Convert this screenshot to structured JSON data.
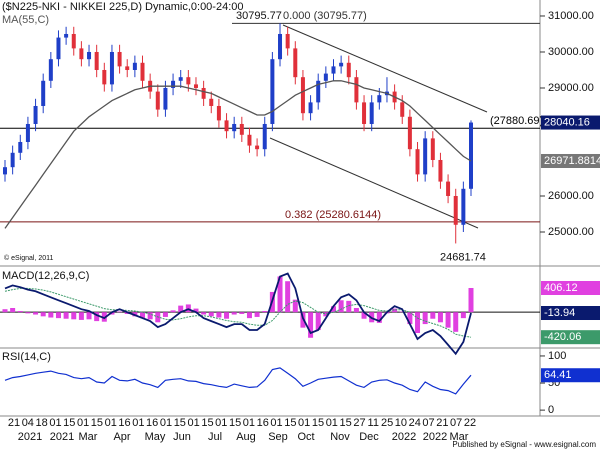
{
  "chart_data": {
    "type": "candlestick",
    "title": "($N225-NKI - NIKKEI 225,D) Dynamic,0:00-24:00",
    "copyright": "© eSignal, 2011",
    "footer": "Published by eSignal - www.esignal.com",
    "x_day_labels": [
      "21",
      "04",
      "18",
      "01",
      "15",
      "01",
      "15",
      "01",
      "16",
      "01",
      "16",
      "01",
      "15",
      "01",
      "15",
      "01",
      "15",
      "01",
      "16",
      "01",
      "15",
      "01",
      "15",
      "01",
      "15",
      "27",
      "11",
      "25",
      "10",
      "24",
      "07",
      "21",
      "07",
      "22"
    ],
    "x_month_labels": [
      "2021",
      "2021",
      "Mar",
      "Apr",
      "May",
      "Jun",
      "Jul",
      "Aug",
      "Sep",
      "Oct",
      "Nov",
      "Dec",
      "2022",
      "2022",
      "Mar"
    ],
    "up_color": "#1f3fc8",
    "down_color": "#e0303a",
    "candles": [
      [
        26600,
        27000,
        26400,
        26800
      ],
      [
        26800,
        27400,
        26600,
        27200
      ],
      [
        27200,
        27700,
        27000,
        27500
      ],
      [
        27500,
        28200,
        27300,
        28000
      ],
      [
        28000,
        28700,
        27800,
        28500
      ],
      [
        28500,
        29400,
        28300,
        29200
      ],
      [
        29200,
        30000,
        29000,
        29800
      ],
      [
        29800,
        30600,
        29600,
        30400
      ],
      [
        30400,
        30700,
        30200,
        30500
      ],
      [
        30500,
        30700,
        29900,
        30100
      ],
      [
        30100,
        30300,
        29600,
        29800
      ],
      [
        29800,
        30200,
        29600,
        30000
      ],
      [
        30000,
        30200,
        29300,
        29500
      ],
      [
        29500,
        29700,
        28900,
        29100
      ],
      [
        29100,
        30200,
        28900,
        30000
      ],
      [
        30000,
        30200,
        29400,
        29600
      ],
      [
        29600,
        29800,
        29300,
        29500
      ],
      [
        29500,
        29900,
        29300,
        29700
      ],
      [
        29700,
        29900,
        29000,
        29200
      ],
      [
        29200,
        29400,
        28700,
        28900
      ],
      [
        28900,
        29100,
        28200,
        28400
      ],
      [
        28400,
        29200,
        28200,
        29000
      ],
      [
        29000,
        29400,
        28800,
        29200
      ],
      [
        29200,
        29500,
        29000,
        29300
      ],
      [
        29300,
        29500,
        28900,
        29100
      ],
      [
        29100,
        29300,
        28800,
        29000
      ],
      [
        29000,
        29200,
        28500,
        28700
      ],
      [
        28700,
        28900,
        28300,
        28500
      ],
      [
        28500,
        28700,
        27900,
        28100
      ],
      [
        28100,
        28300,
        27600,
        27800
      ],
      [
        27800,
        28200,
        27600,
        28000
      ],
      [
        28000,
        28200,
        27500,
        27700
      ],
      [
        27700,
        27900,
        27200,
        27400
      ],
      [
        27400,
        27600,
        27100,
        27300
      ],
      [
        27300,
        28200,
        27100,
        28000
      ],
      [
        28000,
        30000,
        27800,
        29800
      ],
      [
        29800,
        30795.77,
        29600,
        30500
      ],
      [
        30500,
        30700,
        29900,
        30100
      ],
      [
        30100,
        30300,
        29100,
        29300
      ],
      [
        29300,
        29500,
        28100,
        28300
      ],
      [
        28300,
        28800,
        28100,
        28600
      ],
      [
        28600,
        29400,
        28400,
        29200
      ],
      [
        29200,
        29600,
        29000,
        29400
      ],
      [
        29400,
        29800,
        29200,
        29600
      ],
      [
        29600,
        29900,
        29400,
        29700
      ],
      [
        29700,
        29900,
        29100,
        29300
      ],
      [
        29300,
        29500,
        28400,
        28600
      ],
      [
        28600,
        28800,
        27800,
        28000
      ],
      [
        28000,
        28800,
        27800,
        28600
      ],
      [
        28600,
        29000,
        28400,
        28800
      ],
      [
        28800,
        29300,
        28600,
        28900
      ],
      [
        28900,
        29100,
        28400,
        28600
      ],
      [
        28600,
        28800,
        28000,
        28200
      ],
      [
        28200,
        28400,
        27100,
        27300
      ],
      [
        27300,
        27500,
        26400,
        26600
      ],
      [
        26600,
        27800,
        26400,
        27600
      ],
      [
        27600,
        27800,
        26800,
        27000
      ],
      [
        27000,
        27200,
        26200,
        26400
      ],
      [
        26400,
        26600,
        25800,
        26000
      ],
      [
        26000,
        26200,
        24681.74,
        25200
      ],
      [
        25200,
        26400,
        25000,
        26200
      ],
      [
        26200,
        28100,
        26000,
        28040.16
      ]
    ],
    "ma": {
      "name": "MA(55,C)",
      "color": "#555555",
      "values": [
        25100,
        25400,
        25700,
        26000,
        26300,
        26600,
        26900,
        27200,
        27500,
        27800,
        28000,
        28200,
        28350,
        28500,
        28650,
        28750,
        28850,
        28950,
        29000,
        29050,
        29050,
        29050,
        29050,
        29050,
        29000,
        28950,
        28900,
        28850,
        28750,
        28650,
        28550,
        28450,
        28350,
        28250,
        28250,
        28350,
        28500,
        28650,
        28800,
        28900,
        29000,
        29100,
        29150,
        29200,
        29200,
        29150,
        29100,
        29000,
        28950,
        28900,
        28850,
        28750,
        28650,
        28500,
        28300,
        28100,
        27900,
        27700,
        27500,
        27300,
        27100,
        26971.8814
      ]
    },
    "ylim": [
      24083,
      31444
    ],
    "yticks": [
      {
        "value": 31000,
        "label": "31000.00"
      },
      {
        "value": 30000,
        "label": "30000.00"
      },
      {
        "value": 29000,
        "label": "29000.00"
      },
      {
        "value": 26000,
        "label": "26000.00"
      },
      {
        "value": 25000,
        "label": "25000.00"
      }
    ],
    "annotations": [
      {
        "value": 30795.77,
        "label": "30795.77"
      },
      {
        "value": 24681.74,
        "label": "24681.74"
      }
    ],
    "levels": [
      {
        "value": 30795.77,
        "label": "0.000 (30795.77)",
        "color": "#333333"
      },
      {
        "value": 27880.69,
        "label": "(27880.69)",
        "color": "#000000"
      },
      {
        "value": 25280.6144,
        "label": "0.382 (25280.6144)",
        "color": "#7a1414"
      }
    ],
    "macd": {
      "title": "MACD(12,26,9,C)",
      "ylim": [
        -585,
        742
      ],
      "macd": {
        "color": "#0a1a6e",
        "values": [
          400,
          450,
          420,
          380,
          350,
          300,
          250,
          200,
          150,
          100,
          50,
          20,
          -50,
          -100,
          0,
          50,
          0,
          -50,
          -100,
          -150,
          -250,
          -200,
          -100,
          0,
          50,
          0,
          -100,
          -150,
          -200,
          -250,
          -200,
          -200,
          -300,
          -300,
          -200,
          200,
          600,
          650,
          400,
          -100,
          -350,
          -300,
          -100,
          100,
          250,
          300,
          200,
          0,
          -100,
          -150,
          0,
          100,
          50,
          -200,
          -450,
          -350,
          -300,
          -400,
          -550,
          -700,
          -500,
          -13.94
        ]
      },
      "signal": {
        "color": "#3c9a6a",
        "values": [
          350,
          380,
          400,
          400,
          390,
          370,
          340,
          300,
          260,
          220,
          180,
          140,
          100,
          60,
          40,
          40,
          30,
          20,
          0,
          -30,
          -80,
          -120,
          -130,
          -110,
          -80,
          -60,
          -60,
          -80,
          -110,
          -140,
          -160,
          -170,
          -200,
          -220,
          -220,
          -140,
          0,
          130,
          190,
          160,
          80,
          0,
          -30,
          0,
          50,
          110,
          130,
          110,
          70,
          30,
          20,
          40,
          40,
          0,
          -100,
          -150,
          -190,
          -230,
          -290,
          -370,
          -400,
          -420.06
        ]
      },
      "histogram": {
        "color": "#e040e0",
        "values": [
          50,
          70,
          20,
          -20,
          -40,
          -70,
          -90,
          -100,
          -110,
          -120,
          -130,
          -120,
          -150,
          -160,
          -40,
          10,
          -30,
          -70,
          -100,
          -120,
          -170,
          -80,
          30,
          110,
          130,
          60,
          -40,
          -70,
          -90,
          -110,
          -40,
          -30,
          -100,
          -80,
          20,
          340,
          600,
          520,
          210,
          -260,
          -430,
          -300,
          -70,
          100,
          200,
          190,
          70,
          -110,
          -170,
          -180,
          -20,
          60,
          10,
          -200,
          -350,
          -200,
          -110,
          -170,
          -260,
          -330,
          -100,
          406.12
        ]
      }
    },
    "rsi": {
      "title": "RSI(14,C)",
      "ylim": [
        -9,
        111
      ],
      "yticks": [
        100,
        50,
        0
      ],
      "color": "#1030d0",
      "values": [
        55,
        60,
        62,
        65,
        68,
        70,
        72,
        68,
        66,
        60,
        58,
        60,
        52,
        50,
        62,
        55,
        54,
        57,
        50,
        47,
        42,
        55,
        57,
        58,
        54,
        53,
        49,
        47,
        44,
        42,
        48,
        45,
        42,
        43,
        55,
        75,
        78,
        68,
        58,
        44,
        50,
        57,
        59,
        61,
        62,
        54,
        46,
        42,
        52,
        55,
        56,
        50,
        46,
        38,
        34,
        52,
        44,
        38,
        36,
        30,
        48,
        64.41
      ]
    }
  }
}
